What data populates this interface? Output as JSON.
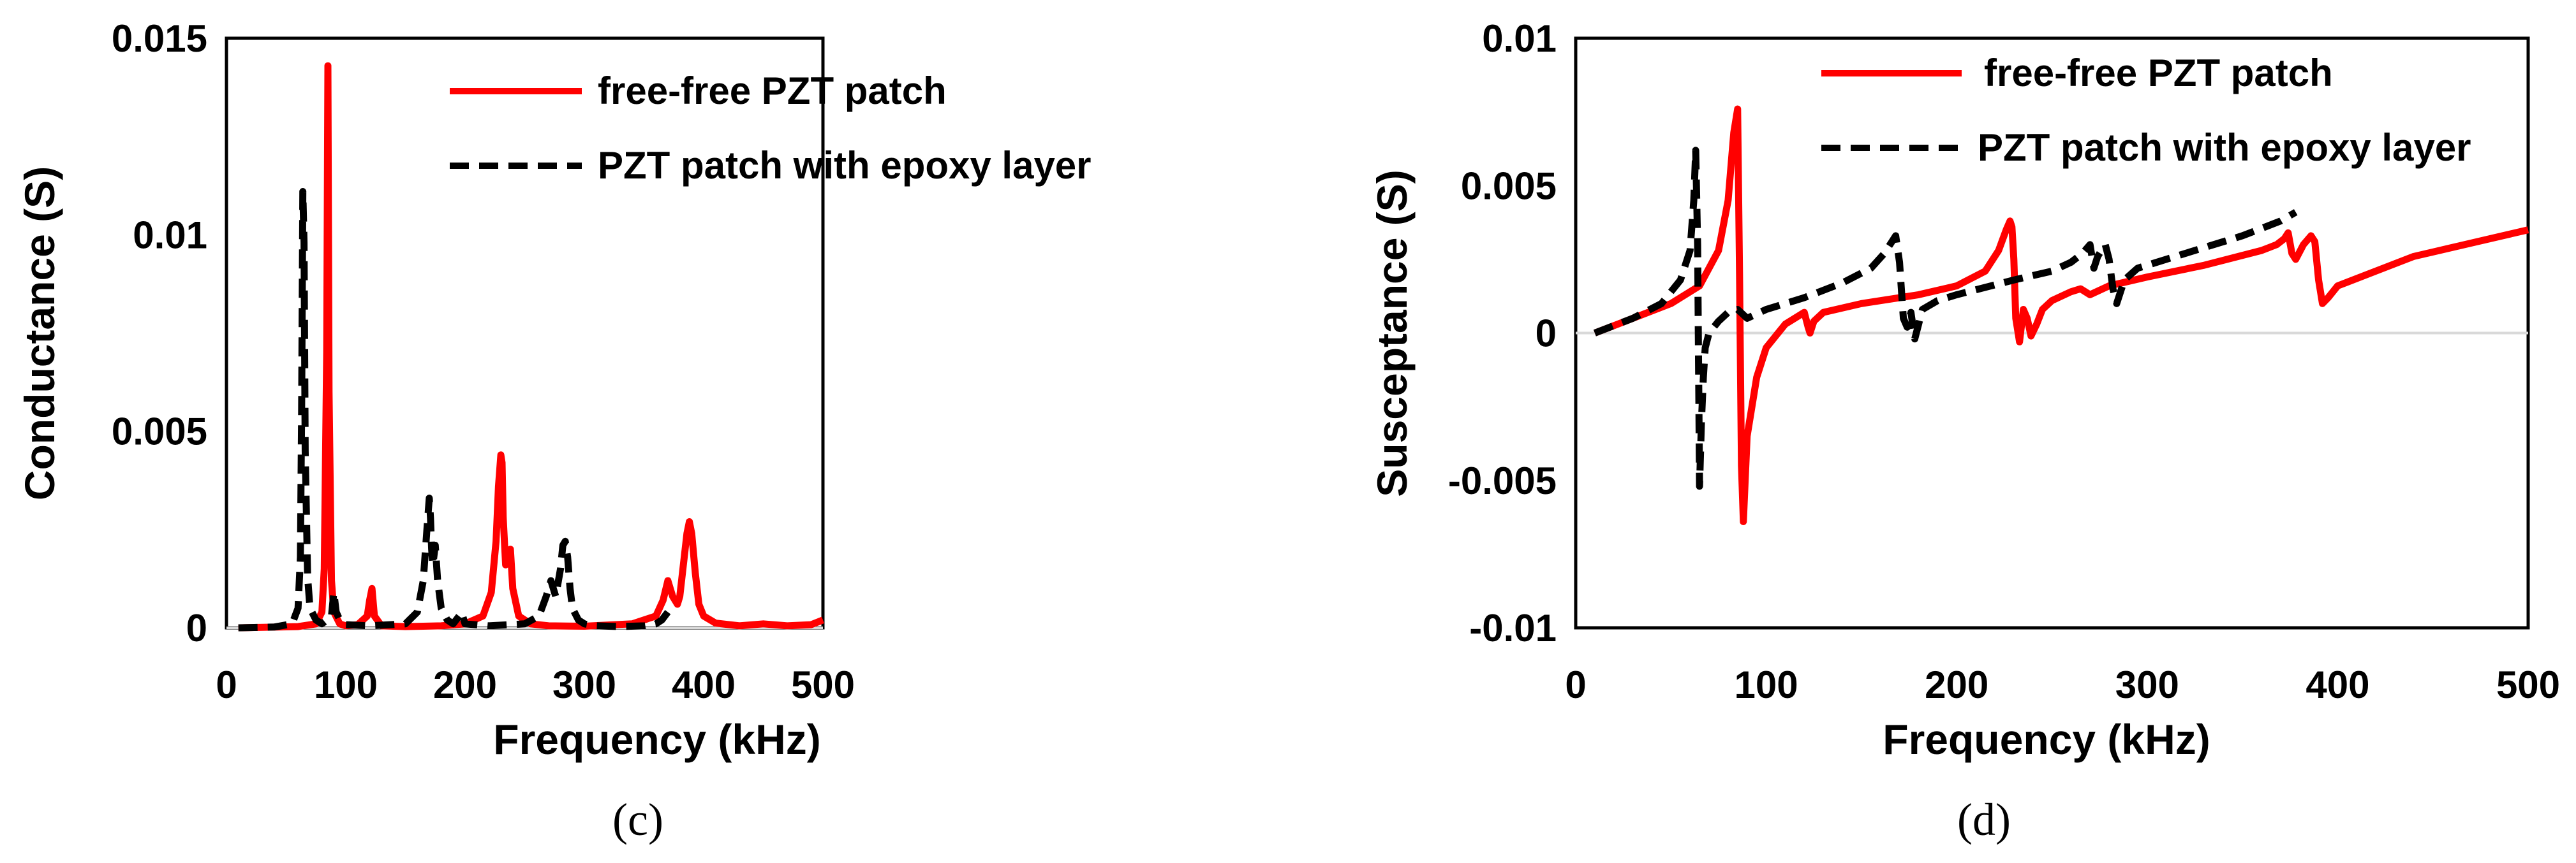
{
  "colors": {
    "free_free": "#ff0000",
    "epoxy": "#000000",
    "axis": "#d9d9d9",
    "frame": "#000000",
    "background": "#ffffff"
  },
  "chart_data": [
    {
      "type": "line",
      "panel_label": "(c)",
      "xlabel": "Frequency (kHz)",
      "ylabel": "Conductance (S)",
      "xlim": [
        0,
        500
      ],
      "ylim": [
        0,
        0.015
      ],
      "x_ticks": [
        0,
        100,
        200,
        300,
        400,
        500
      ],
      "x_tick_labels": [
        "0",
        "100",
        "200",
        "300",
        "400",
        "500"
      ],
      "y_ticks": [
        0,
        0.005,
        0.01,
        0.015
      ],
      "y_tick_labels": [
        "0",
        "0.005",
        "0.01",
        "0.015"
      ],
      "grid": false,
      "legend_position": "top-right",
      "series": [
        {
          "name": "free-free PZT patch",
          "style": "solid",
          "color": "#ff0000",
          "x": [
            10,
            60,
            75,
            80,
            82,
            84,
            85,
            86,
            88,
            90,
            95,
            100,
            110,
            118,
            120,
            122,
            124,
            130,
            150,
            180,
            200,
            215,
            222,
            226,
            228,
            230,
            231,
            232,
            234,
            236,
            238,
            240,
            245,
            255,
            270,
            300,
            340,
            360,
            366,
            370,
            374,
            378,
            380,
            383,
            386,
            388,
            390,
            393,
            396,
            400,
            410,
            430,
            450,
            470,
            490,
            500
          ],
          "y": [
            0,
            3e-05,
            0.0001,
            0.0004,
            0.0015,
            0.007,
            0.0143,
            0.006,
            0.0012,
            0.0004,
            0.0001,
            5e-05,
            8e-05,
            0.0003,
            0.0007,
            0.001,
            0.0003,
            5e-05,
            3e-05,
            5e-05,
            0.0001,
            0.0003,
            0.0009,
            0.0022,
            0.0036,
            0.0044,
            0.0042,
            0.0028,
            0.0016,
            0.0019,
            0.002,
            0.001,
            0.0003,
            0.0001,
            5e-05,
            4e-05,
            0.0001,
            0.0003,
            0.0007,
            0.0012,
            0.0008,
            0.0006,
            0.0008,
            0.0016,
            0.0024,
            0.0027,
            0.0024,
            0.0014,
            0.0006,
            0.0003,
            0.00012,
            5e-05,
            0.0001,
            5e-05,
            8e-05,
            0.0002
          ]
        },
        {
          "name": "PZT patch with epoxy layer",
          "style": "dashed",
          "color": "#000000",
          "x": [
            10,
            40,
            55,
            60,
            62,
            63,
            64,
            65,
            66,
            68,
            70,
            75,
            80,
            88,
            90,
            92,
            95,
            100,
            120,
            150,
            160,
            165,
            168,
            170,
            171,
            172,
            173,
            175,
            177,
            180,
            185,
            190,
            195,
            197,
            200,
            220,
            250,
            262,
            268,
            272,
            276,
            280,
            282,
            284,
            286,
            288,
            290,
            295,
            300,
            310,
            330,
            350,
            360,
            365,
            370
          ],
          "y": [
            0,
            2e-05,
            0.0001,
            0.0005,
            0.0018,
            0.0055,
            0.0111,
            0.0098,
            0.0045,
            0.0013,
            0.0005,
            0.0002,
            0.0001,
            0.0003,
            0.0009,
            0.0004,
            0.0002,
            8e-05,
            5e-05,
            0.0001,
            0.0004,
            0.0012,
            0.0025,
            0.0033,
            0.0028,
            0.002,
            0.0016,
            0.0021,
            0.0012,
            0.0005,
            0.0002,
            0.0001,
            0.0003,
            0.0004,
            0.0001,
            5e-05,
            0.0001,
            0.0003,
            0.0008,
            0.0012,
            0.0008,
            0.0015,
            0.0021,
            0.0022,
            0.0018,
            0.001,
            0.0005,
            0.0002,
            0.0001,
            5e-05,
            3e-05,
            5e-05,
            0.0001,
            0.0002,
            0.0004
          ]
        }
      ]
    },
    {
      "type": "line",
      "panel_label": "(d)",
      "xlabel": "Frequency (kHz)",
      "ylabel": "Susceptance (S)",
      "xlim": [
        0,
        500
      ],
      "ylim": [
        -0.01,
        0.01
      ],
      "x_ticks": [
        0,
        100,
        200,
        300,
        400,
        500
      ],
      "x_tick_labels": [
        "0",
        "100",
        "200",
        "300",
        "400",
        "500"
      ],
      "y_ticks": [
        -0.01,
        -0.005,
        0,
        0.005,
        0.01
      ],
      "y_tick_labels": [
        "-0.01",
        "-0.005",
        "0",
        "0.005",
        "0.01"
      ],
      "grid": false,
      "legend_position": "top-right",
      "series": [
        {
          "name": "free-free PZT patch",
          "style": "solid",
          "color": "#ff0000",
          "x": [
            10,
            30,
            50,
            65,
            75,
            80,
            83,
            85,
            86,
            87,
            88,
            90,
            95,
            100,
            110,
            120,
            122,
            123,
            125,
            130,
            150,
            180,
            200,
            215,
            222,
            226,
            228,
            229,
            230,
            231,
            233,
            235,
            237,
            239,
            242,
            245,
            250,
            260,
            265,
            270,
            280,
            300,
            330,
            360,
            368,
            372,
            374,
            376,
            378,
            382,
            386,
            388,
            390,
            392,
            395,
            400,
            420,
            440,
            460,
            480,
            500
          ],
          "y": [
            0,
            0.0005,
            0.001,
            0.0016,
            0.0028,
            0.0045,
            0.0068,
            0.0076,
            0.002,
            -0.0045,
            -0.0064,
            -0.0035,
            -0.0015,
            -0.0005,
            0.0003,
            0.0007,
            0.0002,
            0,
            0.0004,
            0.0007,
            0.001,
            0.0013,
            0.0016,
            0.0021,
            0.0028,
            0.0035,
            0.0038,
            0.0036,
            0.0025,
            0.0005,
            -0.0003,
            0.0008,
            0.0005,
            -0.0001,
            0.0003,
            0.0008,
            0.0011,
            0.0014,
            0.0015,
            0.0013,
            0.0016,
            0.0019,
            0.0023,
            0.0028,
            0.003,
            0.0032,
            0.0034,
            0.0027,
            0.0025,
            0.003,
            0.0033,
            0.0031,
            0.0018,
            0.001,
            0.0012,
            0.0016,
            0.0021,
            0.0026,
            0.0029,
            0.0032,
            0.0035
          ]
        },
        {
          "name": "PZT patch with epoxy layer",
          "style": "dashed",
          "color": "#000000",
          "x": [
            10,
            30,
            45,
            55,
            60,
            62,
            63,
            64,
            65,
            66,
            67,
            68,
            70,
            75,
            80,
            85,
            90,
            100,
            120,
            140,
            155,
            162,
            166,
            168,
            170,
            172,
            174,
            176,
            178,
            182,
            190,
            200,
            230,
            250,
            260,
            266,
            270,
            272,
            274,
            276,
            278,
            280,
            282,
            284,
            288,
            295,
            320,
            350,
            370,
            378
          ],
          "y": [
            0,
            0.0005,
            0.001,
            0.0018,
            0.0028,
            0.0045,
            0.0062,
            0.003,
            -0.0052,
            -0.003,
            -0.0015,
            -0.0005,
            0,
            0.0004,
            0.0007,
            0.0008,
            0.0005,
            0.0008,
            0.0012,
            0.0017,
            0.0022,
            0.0027,
            0.0031,
            0.0033,
            0.0024,
            0.0005,
            0.0002,
            0.0007,
            -0.0002,
            0.0008,
            0.0011,
            0.0013,
            0.0018,
            0.0021,
            0.0024,
            0.0027,
            0.003,
            0.0022,
            0.0026,
            0.0028,
            0.003,
            0.0025,
            0.0015,
            0.001,
            0.0018,
            0.0022,
            0.0027,
            0.0033,
            0.0038,
            0.0041
          ]
        }
      ]
    }
  ]
}
